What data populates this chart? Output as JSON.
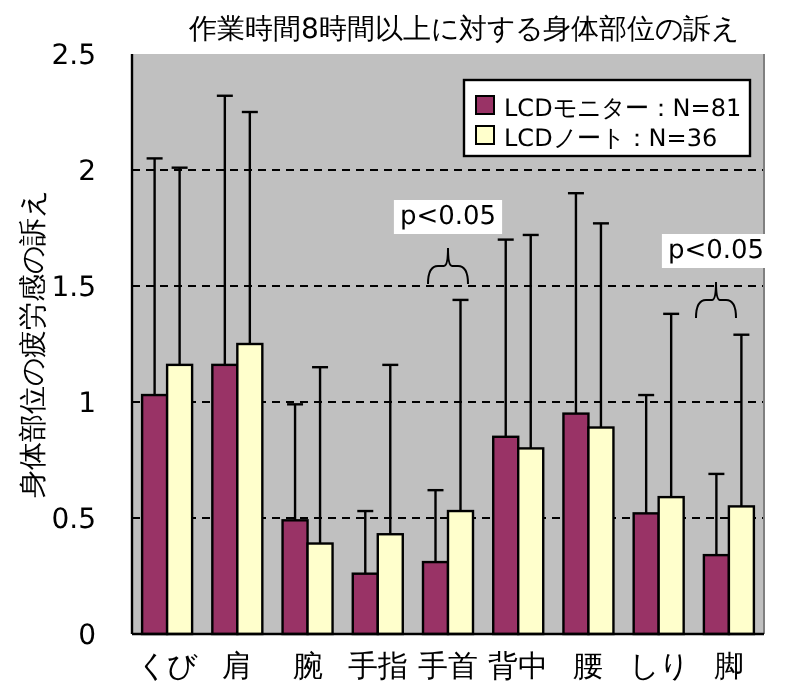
{
  "chart_data": {
    "type": "bar",
    "title": "作業時間8時間以上に対する身体部位の訴え",
    "ylabel": "身体部位の疲労感の訴え",
    "categories": [
      "くび",
      "肩",
      "腕",
      "手指",
      "手首",
      "背中",
      "腰",
      "しり",
      "脚"
    ],
    "series": [
      {
        "name": "LCDモニター：N=81",
        "color": "#993366",
        "values": [
          1.03,
          1.16,
          0.49,
          0.26,
          0.31,
          0.85,
          0.95,
          0.52,
          0.34
        ],
        "errors": [
          [
            1.03,
            2.05
          ],
          [
            1.16,
            2.32
          ],
          [
            0.49,
            0.99
          ],
          [
            0.26,
            0.53
          ],
          [
            0.31,
            0.62
          ],
          [
            0.85,
            1.7
          ],
          [
            0.95,
            1.9
          ],
          [
            0.52,
            1.03
          ],
          [
            0.34,
            0.69
          ]
        ]
      },
      {
        "name": "LCDノート：N=36",
        "color": "#ffffcc",
        "values": [
          1.16,
          1.25,
          0.39,
          0.43,
          0.53,
          0.8,
          0.89,
          0.59,
          0.55
        ],
        "errors": [
          [
            1.16,
            2.01
          ],
          [
            1.25,
            2.25
          ],
          [
            0.39,
            1.15
          ],
          [
            0.43,
            1.16
          ],
          [
            0.53,
            1.44
          ],
          [
            0.8,
            1.72
          ],
          [
            0.89,
            1.77
          ],
          [
            0.59,
            1.38
          ],
          [
            0.55,
            1.29
          ]
        ]
      }
    ],
    "ylim": [
      0,
      2.5
    ],
    "yticks": [
      0,
      0.5,
      1,
      1.5,
      2,
      2.5
    ],
    "grid": "y",
    "line_style": "dashed",
    "legend": "top right",
    "annotations": [
      "p<0.05",
      "p<0.05"
    ]
  }
}
